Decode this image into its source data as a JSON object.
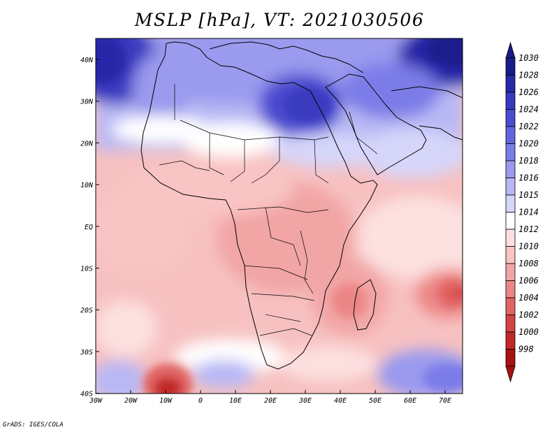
{
  "title": "MSLP [hPa], VT: 2021030506",
  "credit": "GrADS: IGES/COLA",
  "map": {
    "region": "Africa",
    "field": "MSLP",
    "units": "hPa",
    "lon_range": [
      -30,
      75
    ],
    "lat_range": [
      -40,
      45
    ],
    "x_ticks": [
      "30W",
      "20W",
      "10W",
      "0",
      "10E",
      "20E",
      "30E",
      "40E",
      "50E",
      "60E",
      "70E"
    ],
    "y_ticks": [
      "40N",
      "30N",
      "20N",
      "10N",
      "EQ",
      "10S",
      "20S",
      "30S",
      "40S"
    ],
    "features": [
      {
        "name": "high-north-atlantic",
        "lon": -28,
        "lat": 41,
        "value": 1028
      },
      {
        "name": "high-egypt-libya",
        "lon": 28,
        "lat": 29,
        "value": 1026
      },
      {
        "name": "high-arabia-iran",
        "lon": 68,
        "lat": 43,
        "value": 1030
      },
      {
        "name": "high-south-indian-ocean",
        "lon": 66,
        "lat": -36,
        "value": 1022
      },
      {
        "name": "low-central-africa",
        "lon": 24,
        "lat": 0,
        "value": 1009
      },
      {
        "name": "low-mozambique-channel",
        "lon": 42,
        "lat": -17,
        "value": 1007
      },
      {
        "name": "low-indian-ocean",
        "lon": 72,
        "lat": -16,
        "value": 1006
      },
      {
        "name": "low-south-atlantic",
        "lon": -10,
        "lat": -38,
        "value": 1000
      }
    ]
  },
  "colorbar": {
    "labels": [
      "1030",
      "1028",
      "1026",
      "1024",
      "1022",
      "1020",
      "1018",
      "1016",
      "1015",
      "1014",
      "1012",
      "1010",
      "1008",
      "1006",
      "1004",
      "1002",
      "1000",
      "998"
    ],
    "colors": [
      "#1a1a8c",
      "#2828a8",
      "#3a3ac0",
      "#4c4cd0",
      "#6464e0",
      "#7c7ce8",
      "#9a9aef",
      "#b8b8f5",
      "#d6d6fa",
      "#ffffff",
      "#fde0e0",
      "#f9c4c4",
      "#f2a5a5",
      "#ec8686",
      "#e06464",
      "#d24444",
      "#c22828",
      "#a81212"
    ]
  }
}
